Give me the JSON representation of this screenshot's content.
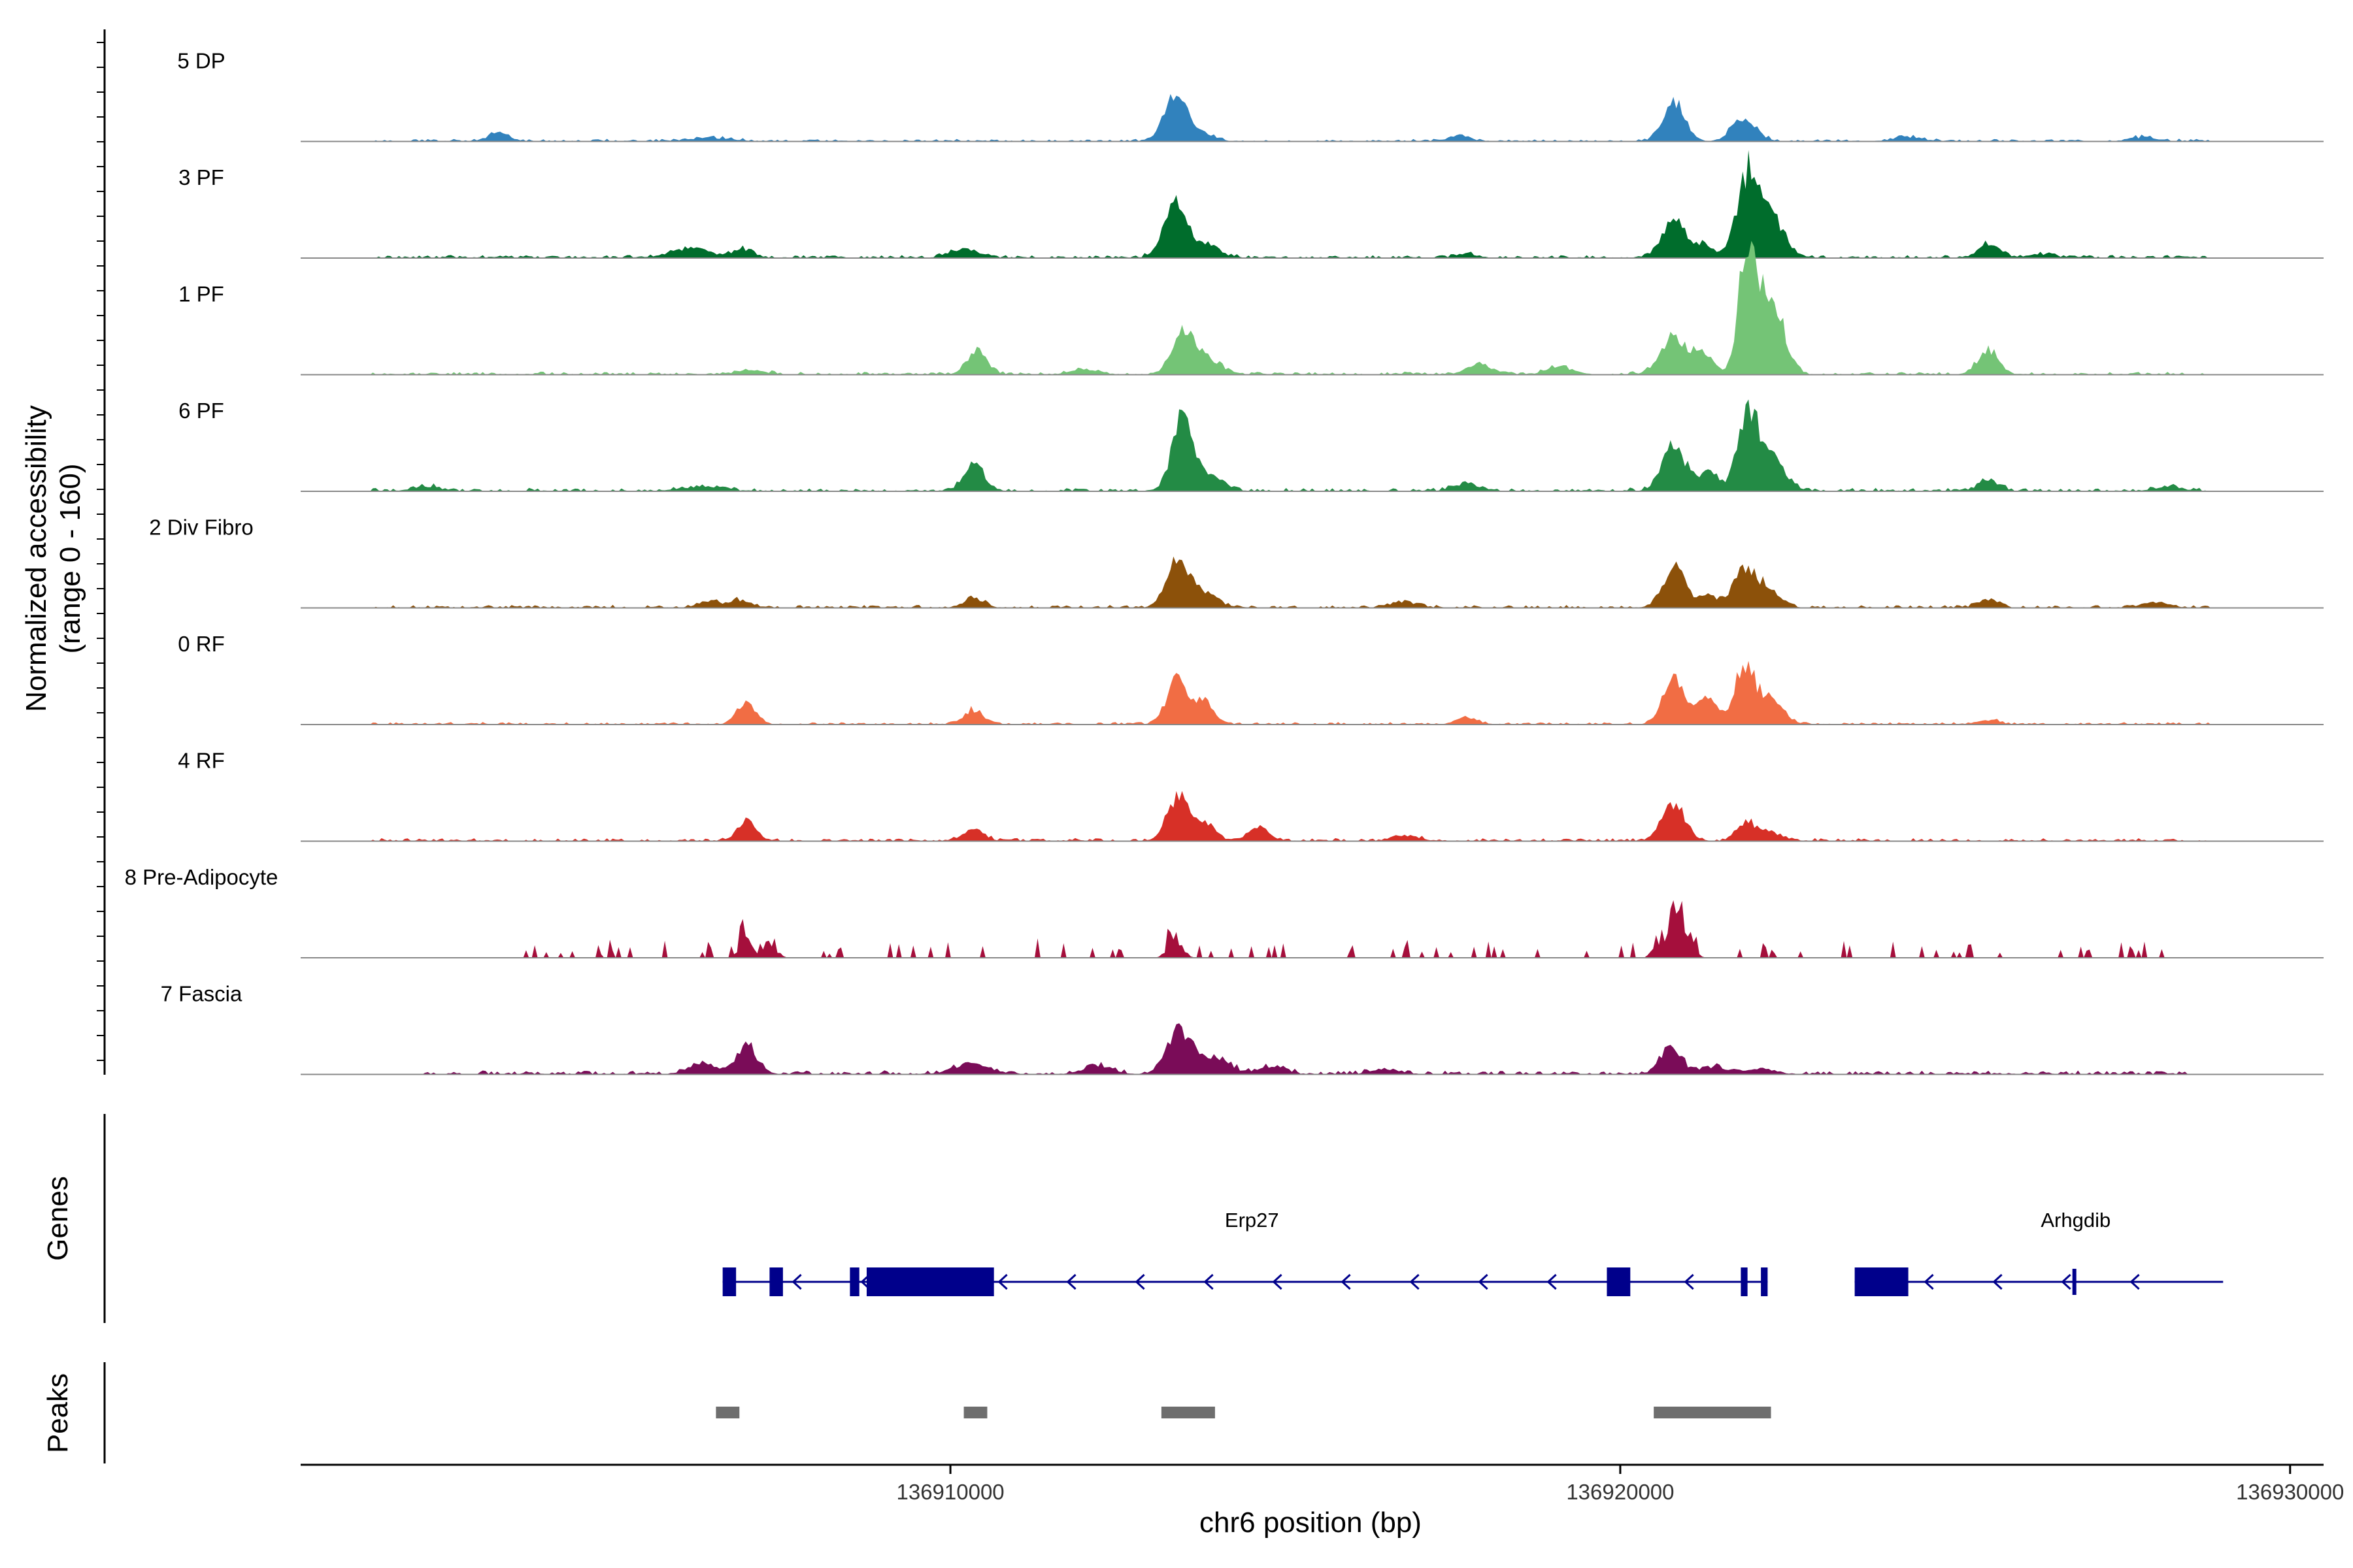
{
  "chart_data": {
    "type": "area",
    "title": "",
    "xlabel": "chr6 position (bp)",
    "ylabel": "Normalized accessibility",
    "ylabel_range": "(range 0 - 160)",
    "ylim": [
      0,
      160
    ],
    "xlim": [
      136900300,
      136930500
    ],
    "x_ticks": [
      136910000,
      136920000,
      136930000
    ],
    "x_tick_labels": [
      "136910000",
      "136920000",
      "136930000"
    ],
    "genes_label": "Genes",
    "peaks_label": "Peaks",
    "series": [
      {
        "name": "5 DP",
        "color": "#3182bd",
        "peaks": [
          [
            136903250,
            10,
            150
          ],
          [
            136906400,
            4,
            300
          ],
          [
            136913350,
            48,
            160
          ],
          [
            136913700,
            10,
            200
          ],
          [
            136917600,
            7,
            150
          ],
          [
            136920800,
            45,
            160
          ],
          [
            136921850,
            25,
            180
          ],
          [
            136924300,
            5,
            200
          ],
          [
            136927800,
            4,
            200
          ]
        ],
        "noise": 2.5,
        "range": [
          136901300,
          136928800
        ],
        "seed": 11
      },
      {
        "name": "3 PF",
        "color": "#006d2c",
        "peaks": [
          [
            136906100,
            10,
            300
          ],
          [
            136906900,
            10,
            150
          ],
          [
            136910200,
            10,
            200
          ],
          [
            136913350,
            60,
            170
          ],
          [
            136913800,
            15,
            200
          ],
          [
            136917700,
            5,
            150
          ],
          [
            136920800,
            40,
            180
          ],
          [
            136921250,
            15,
            120
          ],
          [
            136921900,
            90,
            160
          ],
          [
            136922250,
            45,
            200
          ],
          [
            136925500,
            17,
            150
          ],
          [
            136926300,
            4,
            200
          ]
        ],
        "noise": 3,
        "range": [
          136901300,
          136928800
        ],
        "seed": 23
      },
      {
        "name": "1 PF",
        "color": "#74c476",
        "peaks": [
          [
            136907000,
            5,
            200
          ],
          [
            136910400,
            25,
            150
          ],
          [
            136912000,
            6,
            200
          ],
          [
            136913450,
            45,
            150
          ],
          [
            136913800,
            20,
            200
          ],
          [
            136917900,
            12,
            180
          ],
          [
            136919100,
            8,
            200
          ],
          [
            136920800,
            40,
            200
          ],
          [
            136921250,
            25,
            150
          ],
          [
            136921900,
            140,
            130
          ],
          [
            136922250,
            90,
            180
          ],
          [
            136925500,
            28,
            150
          ]
        ],
        "noise": 3,
        "range": [
          136901300,
          136928800
        ],
        "seed": 37
      },
      {
        "name": "6 PF",
        "color": "#238b45",
        "peaks": [
          [
            136902200,
            5,
            200
          ],
          [
            136906300,
            5,
            300
          ],
          [
            136910350,
            30,
            150
          ],
          [
            136913450,
            80,
            150
          ],
          [
            136913850,
            18,
            200
          ],
          [
            136917700,
            8,
            200
          ],
          [
            136920800,
            50,
            170
          ],
          [
            136921300,
            20,
            150
          ],
          [
            136921900,
            85,
            150
          ],
          [
            136922250,
            40,
            200
          ],
          [
            136925500,
            12,
            150
          ],
          [
            136928200,
            4,
            200
          ]
        ],
        "noise": 3.5,
        "range": [
          136901300,
          136928800
        ],
        "seed": 41
      },
      {
        "name": "2 Div Fibro",
        "color": "#8c510a",
        "peaks": [
          [
            136906400,
            8,
            150
          ],
          [
            136906850,
            8,
            150
          ],
          [
            136910350,
            10,
            150
          ],
          [
            136913400,
            50,
            170
          ],
          [
            136913800,
            15,
            200
          ],
          [
            136916800,
            6,
            200
          ],
          [
            136920800,
            47,
            160
          ],
          [
            136921300,
            15,
            150
          ],
          [
            136921850,
            42,
            160
          ],
          [
            136922200,
            22,
            180
          ],
          [
            136925500,
            10,
            150
          ],
          [
            136928000,
            6,
            200
          ]
        ],
        "noise": 3,
        "range": [
          136901300,
          136928800
        ],
        "seed": 53
      },
      {
        "name": "0 RF",
        "color": "#f16d44",
        "peaks": [
          [
            136906950,
            24,
            140
          ],
          [
            136910350,
            16,
            150
          ],
          [
            136913400,
            50,
            160
          ],
          [
            136913800,
            24,
            130
          ],
          [
            136917700,
            8,
            150
          ],
          [
            136920800,
            50,
            160
          ],
          [
            136921300,
            30,
            140
          ],
          [
            136921850,
            65,
            150
          ],
          [
            136922250,
            30,
            180
          ],
          [
            136925500,
            5,
            150
          ]
        ],
        "noise": 2.5,
        "range": [
          136901300,
          136928800
        ],
        "seed": 61
      },
      {
        "name": "4 RF",
        "color": "#d73027",
        "peaks": [
          [
            136906950,
            22,
            140
          ],
          [
            136910350,
            14,
            150
          ],
          [
            136913400,
            50,
            160
          ],
          [
            136913800,
            20,
            150
          ],
          [
            136914600,
            16,
            150
          ],
          [
            136916800,
            6,
            200
          ],
          [
            136920800,
            42,
            170
          ],
          [
            136921900,
            20,
            150
          ],
          [
            136922300,
            8,
            150
          ]
        ],
        "noise": 3,
        "range": [
          136901300,
          136928800
        ],
        "seed": 71
      },
      {
        "name": "8 Pre-Adipocyte",
        "color": "#a50f3c",
        "peaks": [
          [
            136906950,
            40,
            80
          ],
          [
            136907300,
            15,
            100
          ],
          [
            136913350,
            28,
            100
          ],
          [
            136920800,
            65,
            70
          ],
          [
            136920600,
            22,
            90
          ],
          [
            136921000,
            28,
            90
          ]
        ],
        "noise": 0,
        "spiky": true,
        "range": [
          136903500,
          136928500
        ],
        "seed": 83
      },
      {
        "name": "7 Fascia",
        "color": "#7a0c58",
        "peaks": [
          [
            136906950,
            32,
            150
          ],
          [
            136906300,
            12,
            200
          ],
          [
            136910300,
            12,
            250
          ],
          [
            136912200,
            10,
            200
          ],
          [
            136913400,
            45,
            180
          ],
          [
            136913900,
            18,
            250
          ],
          [
            136914800,
            8,
            200
          ],
          [
            136916500,
            6,
            200
          ],
          [
            136920750,
            32,
            150
          ],
          [
            136921400,
            8,
            200
          ],
          [
            136922100,
            6,
            200
          ]
        ],
        "noise": 4,
        "range": [
          136902100,
          136928500
        ],
        "seed": 97
      }
    ],
    "genes": [
      {
        "name": "Erp27",
        "strand": "-",
        "start": 136906600,
        "end": 136922200,
        "exons": [
          [
            136906600,
            136906800,
            "thick"
          ],
          [
            136907300,
            136907500,
            "thick"
          ],
          [
            136908500,
            136908640,
            "thick"
          ],
          [
            136908750,
            136910650,
            "thick"
          ],
          [
            136919800,
            136920150,
            "thick"
          ],
          [
            136921800,
            136921900,
            "thick"
          ],
          [
            136922100,
            136922200,
            "thick"
          ]
        ]
      },
      {
        "name": "Arhgdib",
        "strand": "-",
        "start": 136923500,
        "end": 136929000,
        "exons": [
          [
            136923500,
            136924300,
            "thick"
          ],
          [
            136926750,
            136926800,
            "thin"
          ]
        ]
      }
    ],
    "peak_regions": [
      [
        136906500,
        136906850
      ],
      [
        136910200,
        136910550
      ],
      [
        136913150,
        136913950
      ],
      [
        136920500,
        136922250
      ]
    ]
  }
}
